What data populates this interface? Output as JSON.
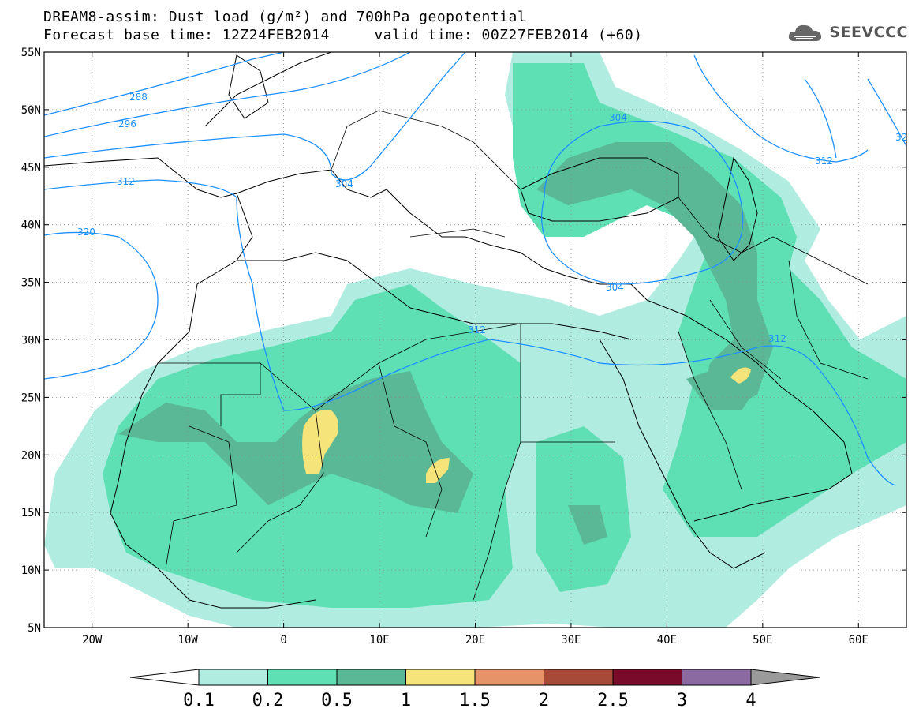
{
  "header": {
    "title_line1": "DREAM8-assim: Dust load (g/m²) and 700hPa geopotential",
    "title_line2": "Forecast base time: 12Z24FEB2014     valid time: 00Z27FEB2014 (+60)",
    "logo_text": "SEEVCCC"
  },
  "map": {
    "lat_labels": [
      "55N",
      "50N",
      "45N",
      "40N",
      "35N",
      "30N",
      "25N",
      "20N",
      "15N",
      "10N",
      "5N"
    ],
    "lon_labels": [
      "20W",
      "10W",
      "0",
      "10E",
      "20E",
      "30E",
      "40E",
      "50E",
      "60E"
    ],
    "lon_range": [
      -25,
      65
    ],
    "lat_range": [
      5,
      55
    ],
    "contour_color": "#1e90ff",
    "contours": [
      {
        "value": "288"
      },
      {
        "value": "296"
      },
      {
        "value": "304"
      },
      {
        "value": "312"
      },
      {
        "value": "320"
      },
      {
        "value": "304"
      },
      {
        "value": "312"
      },
      {
        "value": "304"
      },
      {
        "value": "312"
      },
      {
        "value": "312"
      },
      {
        "value": "32"
      }
    ]
  },
  "colorbar": {
    "levels": [
      "0.1",
      "0.2",
      "0.5",
      "1",
      "1.5",
      "2",
      "2.5",
      "3",
      "4"
    ],
    "colors": [
      "#ffffff",
      "#b0ece0",
      "#5ee0b4",
      "#5ab896",
      "#f5e47a",
      "#e6936a",
      "#a84a3a",
      "#7a0a2a",
      "#8a6aa0",
      "#9a9a9a"
    ]
  }
}
